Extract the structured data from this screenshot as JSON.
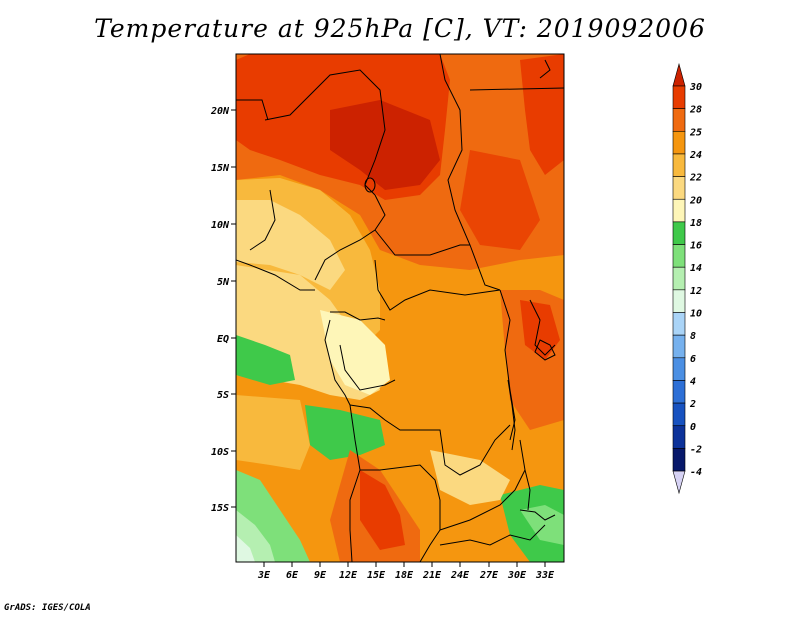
{
  "title": "Temperature at 925hPa [C], VT: 2019092006",
  "credit": "GrADS: IGES/COLA",
  "lat_labels": [
    "20N",
    "15N",
    "10N",
    "5N",
    "EQ",
    "5S",
    "10S",
    "15S"
  ],
  "lon_labels": [
    "3E",
    "6E",
    "9E",
    "12E",
    "15E",
    "18E",
    "21E",
    "24E",
    "27E",
    "30E",
    "33E"
  ],
  "colorbar": {
    "labels": [
      "30",
      "28",
      "25",
      "24",
      "22",
      "20",
      "18",
      "16",
      "14",
      "12",
      "10",
      "8",
      "6",
      "4",
      "2",
      "0",
      "-2",
      "-4"
    ],
    "colors": [
      "#cc2200",
      "#e83c00",
      "#ef6a10",
      "#f5960f",
      "#f8b93d",
      "#fbd980",
      "#fef6b8",
      "#3fc94a",
      "#7ee07a",
      "#b5efb1",
      "#dff8e2",
      "#aad4f7",
      "#76b1ee",
      "#4b8fe3",
      "#2d6fd6",
      "#1752c0",
      "#0c329a",
      "#07186a",
      "#d6d2f4"
    ]
  }
}
